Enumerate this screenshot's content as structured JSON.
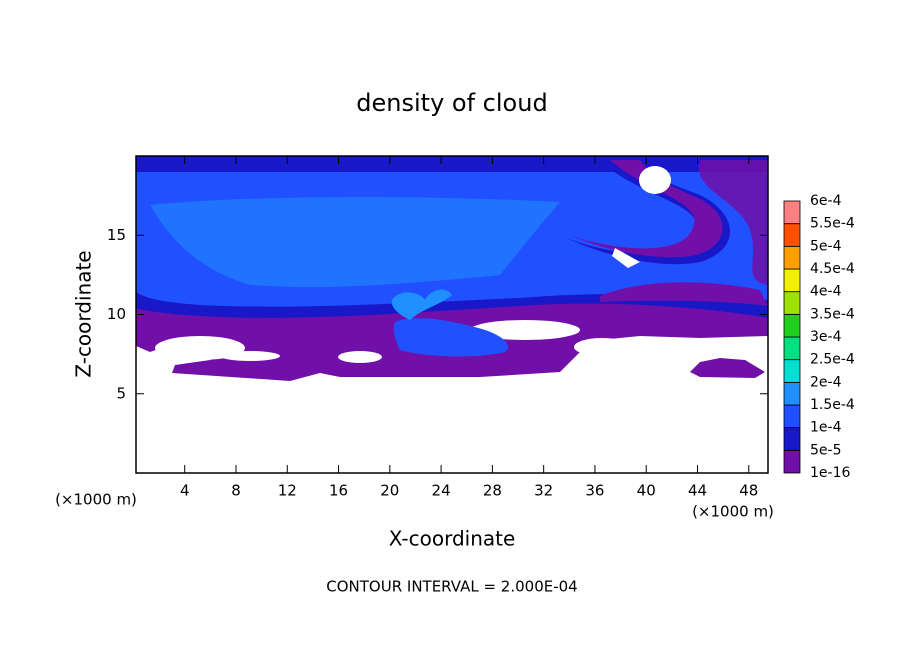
{
  "chart_data": {
    "type": "contour",
    "title": "density of cloud",
    "x_label": "X-coordinate",
    "y_label": "Z-coordinate",
    "x_unit_label": "(×1000 m)",
    "y_unit_label": "(×1000 m)",
    "footer": "CONTOUR INTERVAL = 2.000E-04",
    "xlim": [
      0.2,
      49.5
    ],
    "xticks": [
      4,
      8,
      12,
      16,
      20,
      24,
      28,
      32,
      36,
      40,
      44,
      48
    ],
    "ylim": [
      0,
      20
    ],
    "yticks": [
      5,
      10,
      15
    ],
    "colorbar": {
      "levels": [
        {
          "value": 1e-16,
          "label": "1e-16"
        },
        {
          "value": 5e-05,
          "label": "5e-5"
        },
        {
          "value": 0.0001,
          "label": "1e-4"
        },
        {
          "value": 0.00015,
          "label": "1.5e-4"
        },
        {
          "value": 0.0002,
          "label": "2e-4"
        },
        {
          "value": 0.00025,
          "label": "2.5e-4"
        },
        {
          "value": 0.0003,
          "label": "3e-4"
        },
        {
          "value": 0.00035,
          "label": "3.5e-4"
        },
        {
          "value": 0.0004,
          "label": "4e-4"
        },
        {
          "value": 0.00045,
          "label": "4.5e-4"
        },
        {
          "value": 0.0005,
          "label": "5e-4"
        },
        {
          "value": 0.00055,
          "label": "5.5e-4"
        },
        {
          "value": 0.0006,
          "label": "6e-4"
        }
      ],
      "colors": [
        "#7010a8",
        "#1818c8",
        "#2050ff",
        "#2090ff",
        "#00e0d0",
        "#00e080",
        "#20d020",
        "#a0e000",
        "#f0f000",
        "#ffa000",
        "#ff5000",
        "#ff8080"
      ]
    }
  }
}
